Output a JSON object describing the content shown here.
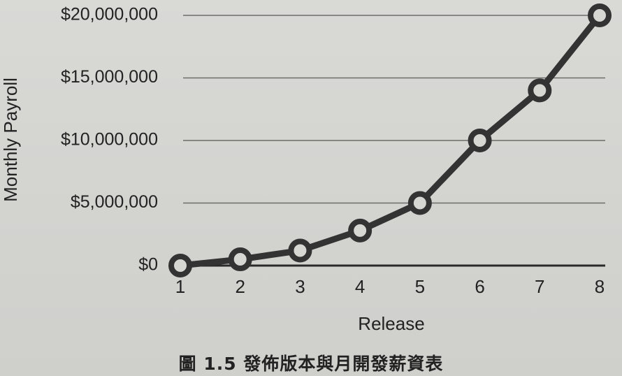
{
  "chart_data": {
    "type": "line",
    "xlabel": "Release",
    "ylabel": "Monthly Payroll",
    "categories": [
      1,
      2,
      3,
      4,
      5,
      6,
      7,
      8
    ],
    "x_tick_labels": [
      "1",
      "2",
      "3",
      "4",
      "5",
      "6",
      "7",
      "8"
    ],
    "values": [
      0,
      500000,
      1200000,
      2800000,
      5000000,
      10000000,
      14000000,
      20000000
    ],
    "ylim": [
      0,
      20000000
    ],
    "y_ticks": [
      0,
      5000000,
      10000000,
      15000000,
      20000000
    ],
    "y_tick_labels": [
      "$0",
      "$5,000,000",
      "$10,000,000",
      "$15,000,000",
      "$20,000,000"
    ],
    "grid": "horizontal",
    "marker": "open-circle",
    "line_color": "#333333"
  },
  "caption": "圖 1.5 發佈版本與月開發薪資表"
}
